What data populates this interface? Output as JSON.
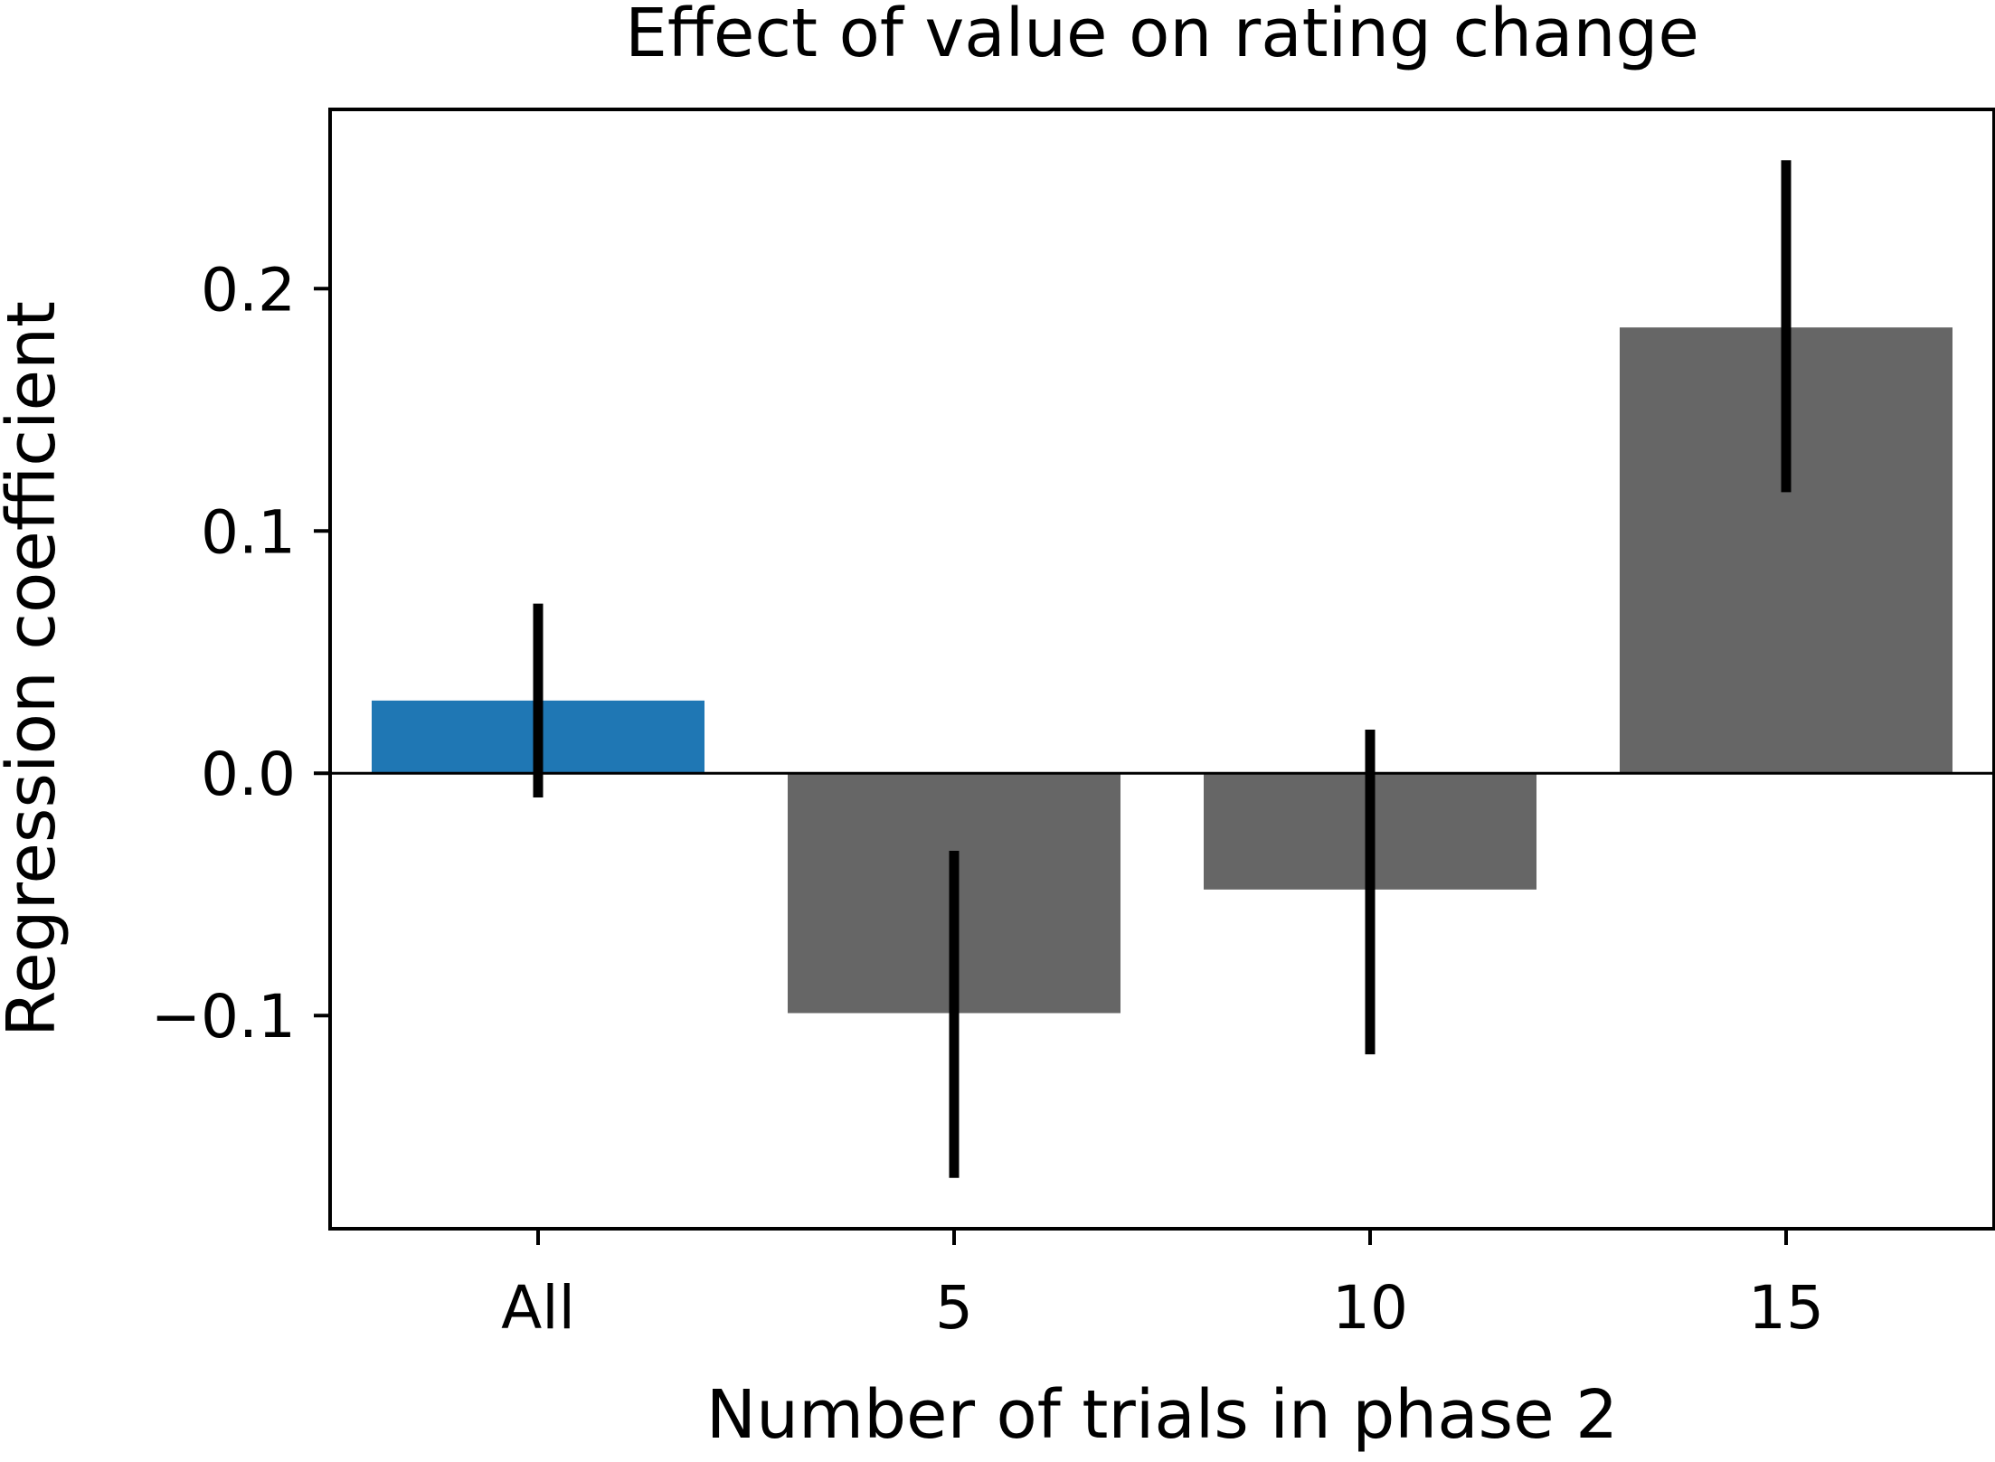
{
  "chart_data": {
    "type": "bar",
    "title": "Effect of value on rating change",
    "xlabel": "Number of trials in phase 2",
    "ylabel": "Regression coefficient",
    "categories": [
      "All",
      "5",
      "10",
      "15"
    ],
    "values": [
      0.03,
      -0.099,
      -0.048,
      0.184
    ],
    "error_low": [
      -0.01,
      -0.167,
      -0.116,
      0.116
    ],
    "error_high": [
      0.07,
      -0.032,
      0.018,
      0.253
    ],
    "bar_colors": [
      "#1f77b4",
      "#666666",
      "#666666",
      "#666666"
    ],
    "ylim": [
      -0.188,
      0.274
    ],
    "yticks": [
      -0.1,
      0.0,
      0.1,
      0.2
    ],
    "ytick_labels": [
      "−0.1",
      "0.0",
      "0.1",
      "0.2"
    ],
    "zero_line": true,
    "grid": false,
    "legend": false
  }
}
